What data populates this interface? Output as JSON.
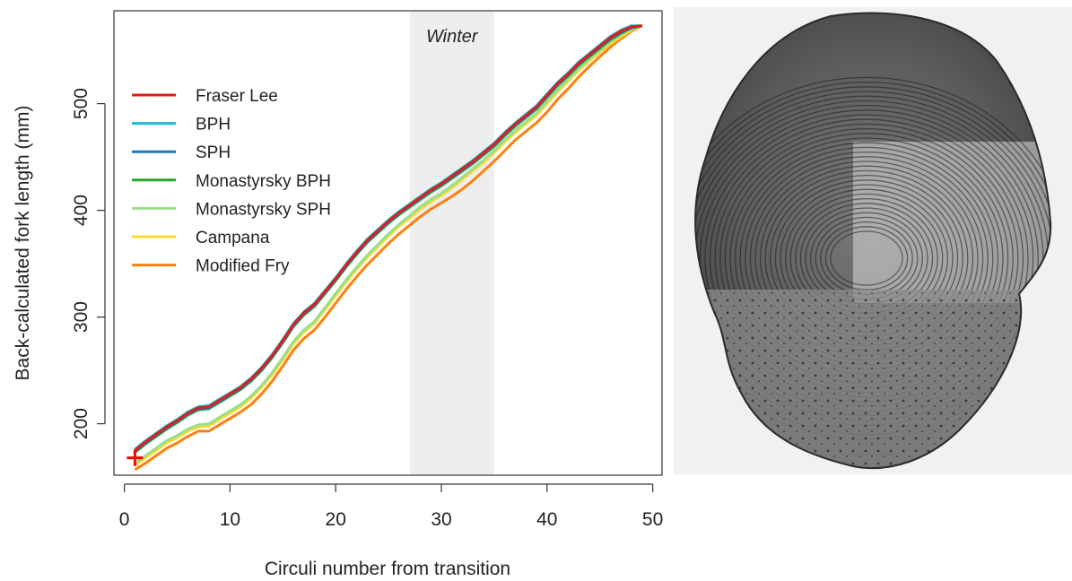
{
  "chart_data": {
    "type": "line",
    "xlabel": "Circuli number from transition",
    "ylabel": "Back-calculated fork length (mm)",
    "xlim": [
      0,
      50
    ],
    "ylim": [
      155,
      585
    ],
    "xticks": [
      0,
      10,
      20,
      30,
      40,
      50
    ],
    "yticks": [
      200,
      300,
      400,
      500
    ],
    "grid": false,
    "legend_position": "top-left",
    "shaded_region": {
      "label": "Winter",
      "x_start": 27,
      "x_end": 35,
      "color": "#eeeeee"
    },
    "marker": {
      "symbol": "+",
      "x": 1,
      "y": 168,
      "color": "#ff0000"
    },
    "x": [
      1,
      2,
      3,
      4,
      5,
      6,
      7,
      8,
      9,
      10,
      11,
      12,
      13,
      14,
      15,
      16,
      17,
      18,
      19,
      20,
      21,
      22,
      23,
      24,
      25,
      26,
      27,
      28,
      29,
      30,
      31,
      32,
      33,
      34,
      35,
      36,
      37,
      38,
      39,
      40,
      41,
      42,
      43,
      44,
      45,
      46,
      47,
      48,
      49
    ],
    "series": [
      {
        "name": "Fraser Lee",
        "color": "#e41a1c",
        "values": [
          175,
          183,
          190,
          197,
          203,
          210,
          215,
          216,
          222,
          228,
          234,
          242,
          252,
          264,
          278,
          293,
          304,
          312,
          324,
          336,
          349,
          361,
          372,
          381,
          390,
          398,
          405,
          412,
          419,
          425,
          432,
          439,
          446,
          454,
          462,
          472,
          481,
          489,
          497,
          508,
          519,
          528,
          538,
          546,
          554,
          562,
          568,
          572,
          573
        ]
      },
      {
        "name": "BPH",
        "color": "#17becf",
        "values": [
          176,
          184,
          191,
          198,
          204,
          211,
          216,
          217,
          223,
          229,
          235,
          243,
          253,
          265,
          279,
          294,
          305,
          313,
          325,
          337,
          350,
          362,
          373,
          382,
          391,
          399,
          406,
          413,
          420,
          426,
          433,
          440,
          447,
          455,
          463,
          473,
          482,
          490,
          498,
          509,
          520,
          529,
          539,
          547,
          555,
          563,
          569,
          573,
          573
        ]
      },
      {
        "name": "SPH",
        "color": "#1f77b4",
        "values": [
          174,
          182,
          189,
          196,
          202,
          209,
          214,
          215,
          221,
          227,
          233,
          241,
          251,
          263,
          277,
          292,
          303,
          311,
          323,
          335,
          348,
          360,
          371,
          380,
          389,
          397,
          404,
          411,
          418,
          424,
          431,
          438,
          445,
          453,
          461,
          471,
          480,
          488,
          496,
          507,
          518,
          527,
          537,
          545,
          553,
          561,
          567,
          571,
          573
        ]
      },
      {
        "name": "Monastyrsky BPH",
        "color": "#2ca02c",
        "values": [
          173,
          181,
          188,
          195,
          201,
          208,
          213,
          214,
          220,
          226,
          232,
          240,
          250,
          262,
          276,
          291,
          302,
          310,
          322,
          334,
          347,
          359,
          370,
          379,
          388,
          396,
          403,
          410,
          417,
          423,
          430,
          437,
          444,
          452,
          460,
          470,
          479,
          487,
          495,
          506,
          517,
          526,
          536,
          544,
          552,
          560,
          566,
          571,
          573
        ]
      },
      {
        "name": "Monastyrsky SPH",
        "color": "#98df8a",
        "values": [
          163,
          170,
          177,
          184,
          189,
          195,
          199,
          200,
          206,
          212,
          218,
          226,
          236,
          248,
          262,
          277,
          288,
          296,
          309,
          322,
          335,
          347,
          358,
          368,
          378,
          387,
          395,
          403,
          410,
          416,
          423,
          431,
          439,
          447,
          456,
          466,
          475,
          483,
          491,
          502,
          513,
          523,
          533,
          542,
          550,
          558,
          565,
          570,
          573
        ]
      },
      {
        "name": "Campana",
        "color": "#ffd92f",
        "values": [
          161,
          168,
          175,
          182,
          187,
          193,
          197,
          198,
          204,
          210,
          216,
          224,
          234,
          246,
          260,
          275,
          286,
          294,
          307,
          320,
          333,
          345,
          356,
          366,
          376,
          385,
          393,
          401,
          408,
          414,
          421,
          429,
          437,
          445,
          454,
          464,
          473,
          481,
          489,
          500,
          511,
          521,
          531,
          540,
          548,
          556,
          563,
          569,
          573
        ]
      },
      {
        "name": "Modified Fry",
        "color": "#ff7f0e",
        "values": [
          157,
          163,
          170,
          177,
          182,
          188,
          193,
          193,
          199,
          205,
          211,
          218,
          228,
          240,
          254,
          269,
          280,
          288,
          300,
          313,
          326,
          338,
          349,
          359,
          369,
          378,
          386,
          394,
          401,
          407,
          413,
          420,
          428,
          437,
          446,
          456,
          466,
          474,
          482,
          492,
          504,
          514,
          525,
          535,
          544,
          553,
          561,
          568,
          573
        ]
      }
    ]
  },
  "photo": {
    "subject": "fish-scale-image"
  }
}
